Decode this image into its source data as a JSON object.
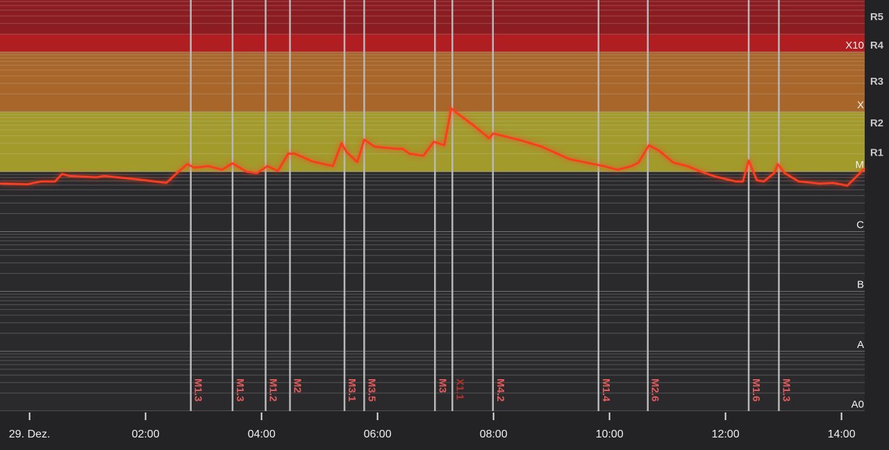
{
  "chart_data": {
    "type": "line",
    "log_scale": true,
    "minor_grid": true,
    "background": "#2a2a2d",
    "xlim": [
      -0.51,
      14.4
    ],
    "xticks": [
      {
        "value": 0,
        "label": "29. Dez."
      },
      {
        "value": 2,
        "label": "02:00"
      },
      {
        "value": 4,
        "label": "04:00"
      },
      {
        "value": 6,
        "label": "06:00"
      },
      {
        "value": 8,
        "label": "08:00"
      },
      {
        "value": 10,
        "label": "10:00"
      },
      {
        "value": 12,
        "label": "12:00"
      },
      {
        "value": 14,
        "label": "14:00"
      }
    ],
    "ylim": [
      1e-09,
      0.0074
    ],
    "yticks": [
      {
        "value": 1e-09,
        "label": "A0"
      },
      {
        "value": 1e-08,
        "label": "A"
      },
      {
        "value": 1e-07,
        "label": "B"
      },
      {
        "value": 1e-06,
        "label": "C"
      },
      {
        "value": 1e-05,
        "label": "M"
      },
      {
        "value": 0.0001,
        "label": "X"
      },
      {
        "value": 0.001,
        "label": "X10"
      }
    ],
    "scale_ticks": [
      {
        "value": 1.6e-05,
        "label": "R1"
      },
      {
        "value": 5e-05,
        "label": "R2"
      },
      {
        "value": 0.00025,
        "label": "R3"
      },
      {
        "value": 0.001,
        "label": "R4"
      },
      {
        "value": 0.003,
        "label": "R5"
      }
    ],
    "bands": [
      {
        "from": 1e-05,
        "to": 0.0001,
        "color": "#a39a2c"
      },
      {
        "from": 0.0001,
        "to": 0.001,
        "color": "#a8662a"
      },
      {
        "from": 0.001,
        "to": 0.002,
        "color": "#b01e22"
      },
      {
        "from": 0.002,
        "to": 0.0074,
        "color": "#8a1c22"
      }
    ],
    "flares": [
      {
        "x": 2.78,
        "label": "M1.3",
        "color": "#e35b5b"
      },
      {
        "x": 3.5,
        "label": "M1.3",
        "color": "#e35b5b"
      },
      {
        "x": 4.07,
        "label": "M1.2",
        "color": "#e35b5b"
      },
      {
        "x": 4.49,
        "label": "M2",
        "color": "#e35b5b"
      },
      {
        "x": 5.43,
        "label": "M3.1",
        "color": "#e35b5b"
      },
      {
        "x": 5.77,
        "label": "M3.5",
        "color": "#e35b5b"
      },
      {
        "x": 6.99,
        "label": "M3",
        "color": "#e35b5b"
      },
      {
        "x": 7.29,
        "label": "X1.1",
        "color": "#b8302a"
      },
      {
        "x": 7.99,
        "label": "M4.2",
        "color": "#e35b5b"
      },
      {
        "x": 9.81,
        "label": "M1.4",
        "color": "#e35b5b"
      },
      {
        "x": 10.66,
        "label": "M2.6",
        "color": "#e35b5b"
      },
      {
        "x": 12.4,
        "label": "M1.6",
        "color": "#e35b5b"
      },
      {
        "x": 12.92,
        "label": "M1.3",
        "color": "#e35b5b"
      }
    ],
    "color": "#ff3b1f",
    "x": [
      -0.51,
      -0.04,
      0.2,
      0.44,
      0.56,
      0.68,
      1.16,
      1.28,
      1.88,
      2.36,
      2.54,
      2.72,
      2.84,
      3.08,
      3.32,
      3.5,
      3.74,
      3.92,
      4.1,
      4.28,
      4.46,
      4.57,
      4.87,
      5.23,
      5.38,
      5.47,
      5.65,
      5.77,
      5.95,
      6.31,
      6.43,
      6.55,
      6.79,
      6.97,
      7.15,
      7.27,
      7.39,
      7.63,
      7.93,
      7.99,
      8.47,
      8.83,
      9.31,
      9.78,
      9.9,
      10.14,
      10.38,
      10.5,
      10.68,
      10.86,
      11.1,
      11.34,
      11.58,
      11.82,
      12.18,
      12.3,
      12.4,
      12.54,
      12.66,
      12.84,
      12.9,
      13.02,
      13.26,
      13.62,
      13.86,
      14.1,
      14.4
    ],
    "values": [
      6.34e-06,
      6.18e-06,
      6.87e-06,
      6.87e-06,
      9.2e-06,
      8.5e-06,
      8.1e-06,
      8.5e-06,
      7.4e-06,
      6.5e-06,
      9.5e-06,
      1.34e-05,
      1.17e-05,
      1.24e-05,
      1.08e-05,
      1.38e-05,
      1e-05,
      9.5e-06,
      1.24e-05,
      1.03e-05,
      2e-05,
      2e-05,
      1.49e-05,
      1.24e-05,
      3e-05,
      2.12e-05,
      1.45e-05,
      3.43e-05,
      2.62e-05,
      2.42e-05,
      2.42e-05,
      2e-05,
      1.85e-05,
      3.16e-05,
      2.77e-05,
      0.000114,
      9.2e-05,
      6.2e-05,
      3.6e-05,
      4.36e-05,
      3.34e-05,
      2.62e-05,
      1.62e-05,
      1.31e-05,
      1.24e-05,
      1.08e-05,
      1.24e-05,
      1.42e-05,
      2.77e-05,
      2.23e-05,
      1.42e-05,
      1.24e-05,
      1e-05,
      8.3e-06,
      6.87e-06,
      6.87e-06,
      1.54e-05,
      7.2e-06,
      6.87e-06,
      9.5e-06,
      1.34e-05,
      9.5e-06,
      6.87e-06,
      6.34e-06,
      6.5e-06,
      5.85e-06,
      1.14e-05
    ]
  }
}
